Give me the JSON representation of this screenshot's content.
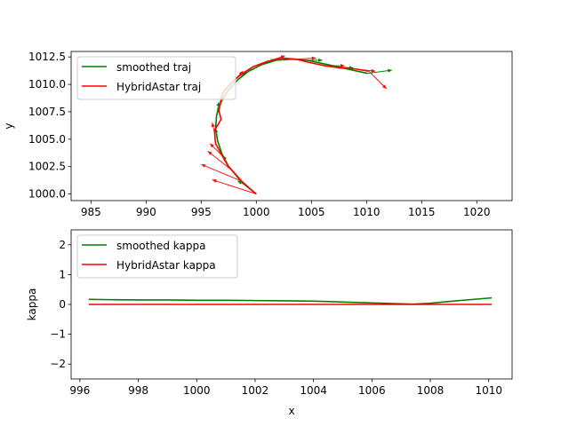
{
  "colors": {
    "smoothed": "#008000",
    "hybrid": "#ff0000"
  },
  "chart_data": [
    {
      "type": "line",
      "xlabel": "",
      "ylabel": "y",
      "xlim": [
        983.2,
        1023.2
      ],
      "ylim": [
        999.4,
        1013.0
      ],
      "xticks": [
        "985",
        "990",
        "995",
        "1000",
        "1005",
        "1010",
        "1015",
        "1020"
      ],
      "xtick_values": [
        985,
        990,
        995,
        1000,
        1005,
        1010,
        1015,
        1020
      ],
      "yticks": [
        "1000.0",
        "1002.5",
        "1005.0",
        "1007.5",
        "1010.0",
        "1012.5"
      ],
      "ytick_values": [
        1000.0,
        1002.5,
        1005.0,
        1007.5,
        1010.0,
        1012.5
      ],
      "legend_position": "top-left",
      "series": [
        {
          "name": "smoothed traj",
          "color": "#008000",
          "x": [
            1000.0,
            999.2,
            998.4,
            997.5,
            996.9,
            996.5,
            996.3,
            996.4,
            996.8,
            997.4,
            998.3,
            999.3,
            1000.5,
            1001.8,
            1003.2,
            1004.6,
            1006.0,
            1007.4,
            1008.7,
            1010.1
          ],
          "y": [
            1000.0,
            1000.7,
            1001.4,
            1002.5,
            1003.6,
            1004.8,
            1006.0,
            1007.2,
            1008.4,
            1009.4,
            1010.4,
            1011.2,
            1011.8,
            1012.2,
            1012.3,
            1012.2,
            1011.9,
            1011.6,
            1011.3,
            1011.0
          ]
        },
        {
          "name": "HybridAstar traj",
          "color": "#ff0000",
          "x": [
            1000.0,
            999.0,
            998.2,
            997.4,
            996.9,
            996.3,
            996.2,
            996.8,
            996.6,
            996.8,
            997.0,
            997.8,
            998.6,
            999.7,
            1001.0,
            1002.4,
            1003.6,
            1004.8,
            1006.2,
            1007.6,
            1009.0,
            1010.2
          ],
          "y": [
            1000.0,
            1000.8,
            1001.7,
            1002.6,
            1003.5,
            1004.6,
            1005.8,
            1006.8,
            1007.6,
            1008.6,
            1009.3,
            1010.2,
            1010.9,
            1011.6,
            1012.1,
            1012.4,
            1012.3,
            1012.0,
            1011.7,
            1011.5,
            1011.4,
            1011.2
          ]
        }
      ],
      "arrows": [
        {
          "series": "HybridAstar traj",
          "x": 1000.0,
          "y": 1000.0,
          "dx": -4.0,
          "dy": 1.3
        },
        {
          "series": "HybridAstar traj",
          "x": 998.6,
          "y": 1001.2,
          "dx": -3.6,
          "dy": 1.5
        },
        {
          "series": "HybridAstar traj",
          "x": 997.6,
          "y": 1002.3,
          "dx": -2.0,
          "dy": 1.6
        },
        {
          "series": "HybridAstar traj",
          "x": 996.9,
          "y": 1003.5,
          "dx": -1.1,
          "dy": 1.1
        },
        {
          "series": "HybridAstar traj",
          "x": 996.3,
          "y": 1005.2,
          "dx": -0.3,
          "dy": 1.3
        },
        {
          "series": "HybridAstar traj",
          "x": 996.6,
          "y": 1007.6,
          "dx": 0.3,
          "dy": 1.4
        },
        {
          "series": "HybridAstar traj",
          "x": 997.8,
          "y": 1010.2,
          "dx": 1.0,
          "dy": 1.0
        },
        {
          "series": "HybridAstar traj",
          "x": 1001.0,
          "y": 1012.1,
          "dx": 1.6,
          "dy": 0.5
        },
        {
          "series": "HybridAstar traj",
          "x": 1003.6,
          "y": 1012.3,
          "dx": 1.8,
          "dy": 0.1
        },
        {
          "series": "HybridAstar traj",
          "x": 1006.2,
          "y": 1011.7,
          "dx": 1.8,
          "dy": 0.0
        },
        {
          "series": "HybridAstar traj",
          "x": 1009.0,
          "y": 1011.4,
          "dx": 1.8,
          "dy": -0.2
        },
        {
          "series": "HybridAstar traj",
          "x": 1010.2,
          "y": 1011.2,
          "dx": 1.6,
          "dy": -1.6
        },
        {
          "series": "smoothed traj",
          "x": 999.2,
          "y": 1000.7,
          "dx": -0.9,
          "dy": 0.5
        },
        {
          "series": "smoothed traj",
          "x": 997.5,
          "y": 1002.5,
          "dx": -0.5,
          "dy": 1.0
        },
        {
          "series": "smoothed traj",
          "x": 996.5,
          "y": 1004.8,
          "dx": -0.2,
          "dy": 1.2
        },
        {
          "series": "smoothed traj",
          "x": 996.4,
          "y": 1007.2,
          "dx": 0.2,
          "dy": 1.2
        },
        {
          "series": "smoothed traj",
          "x": 998.3,
          "y": 1010.4,
          "dx": 0.8,
          "dy": 0.8
        },
        {
          "series": "smoothed traj",
          "x": 1000.5,
          "y": 1011.8,
          "dx": 1.2,
          "dy": 0.5
        },
        {
          "series": "smoothed traj",
          "x": 1004.6,
          "y": 1012.2,
          "dx": 1.4,
          "dy": 0.0
        },
        {
          "series": "smoothed traj",
          "x": 1007.4,
          "y": 1011.6,
          "dx": 1.4,
          "dy": -0.1
        },
        {
          "series": "smoothed traj",
          "x": 1010.1,
          "y": 1011.0,
          "dx": 2.2,
          "dy": 0.3
        }
      ]
    },
    {
      "type": "line",
      "xlabel": "x",
      "ylabel": "kappa",
      "xlim": [
        995.7,
        1010.8
      ],
      "ylim": [
        -2.5,
        2.5
      ],
      "xticks": [
        "996",
        "998",
        "1000",
        "1002",
        "1004",
        "1006",
        "1008",
        "1010"
      ],
      "xtick_values": [
        996,
        998,
        1000,
        1002,
        1004,
        1006,
        1008,
        1010
      ],
      "yticks": [
        "−2",
        "−1",
        "0",
        "1",
        "2"
      ],
      "ytick_values": [
        -2,
        -1,
        0,
        1,
        2
      ],
      "legend_position": "top-left",
      "series": [
        {
          "name": "smoothed kappa",
          "color": "#008000",
          "x": [
            996.3,
            997.0,
            998.0,
            999.0,
            1000.0,
            1001.0,
            1002.0,
            1003.0,
            1004.0,
            1005.0,
            1006.0,
            1007.0,
            1007.4,
            1008.0,
            1009.0,
            1010.1
          ],
          "y": [
            0.17,
            0.16,
            0.15,
            0.15,
            0.14,
            0.14,
            0.13,
            0.12,
            0.11,
            0.08,
            0.05,
            0.02,
            0.01,
            0.04,
            0.13,
            0.22
          ]
        },
        {
          "name": "HybridAstar kappa",
          "color": "#ff0000",
          "x": [
            996.3,
            1010.1
          ],
          "y": [
            0.0,
            0.0
          ]
        }
      ]
    }
  ]
}
